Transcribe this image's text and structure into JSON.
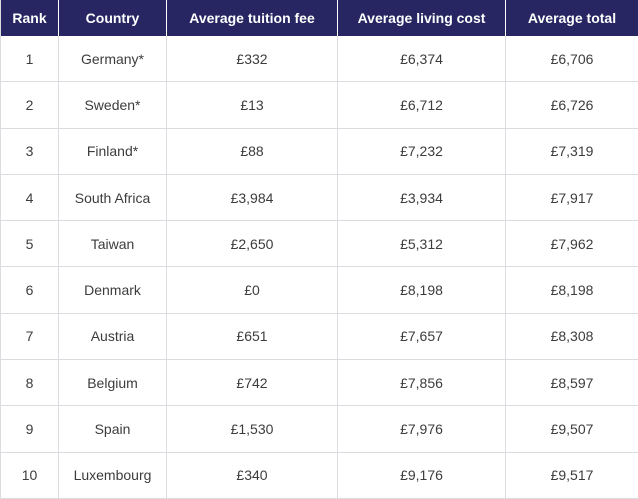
{
  "columns": [
    "Rank",
    "Country",
    "Average tuition fee",
    "Average living cost",
    "Average total"
  ],
  "rows": [
    {
      "rank": "1",
      "country": "Germany*",
      "tuition": "£332",
      "living": "£6,374",
      "total": "£6,706"
    },
    {
      "rank": "2",
      "country": "Sweden*",
      "tuition": "£13",
      "living": "£6,712",
      "total": "£6,726"
    },
    {
      "rank": "3",
      "country": "Finland*",
      "tuition": "£88",
      "living": "£7,232",
      "total": "£7,319"
    },
    {
      "rank": "4",
      "country": "South Africa",
      "tuition": "£3,984",
      "living": "£3,934",
      "total": "£7,917"
    },
    {
      "rank": "5",
      "country": "Taiwan",
      "tuition": "£2,650",
      "living": "£5,312",
      "total": "£7,962"
    },
    {
      "rank": "6",
      "country": "Denmark",
      "tuition": "£0",
      "living": "£8,198",
      "total": "£8,198"
    },
    {
      "rank": "7",
      "country": "Austria",
      "tuition": "£651",
      "living": "£7,657",
      "total": "£8,308"
    },
    {
      "rank": "8",
      "country": "Belgium",
      "tuition": "£742",
      "living": "£7,856",
      "total": "£8,597"
    },
    {
      "rank": "9",
      "country": "Spain",
      "tuition": "£1,530",
      "living": "£7,976",
      "total": "£9,507"
    },
    {
      "rank": "10",
      "country": "Luxembourg",
      "tuition": "£340",
      "living": "£9,176",
      "total": "£9,517"
    }
  ],
  "colors": {
    "header_bg": "#272662",
    "header_text": "#ffffff",
    "border": "#dcdce0",
    "text": "#3c3c3c"
  }
}
